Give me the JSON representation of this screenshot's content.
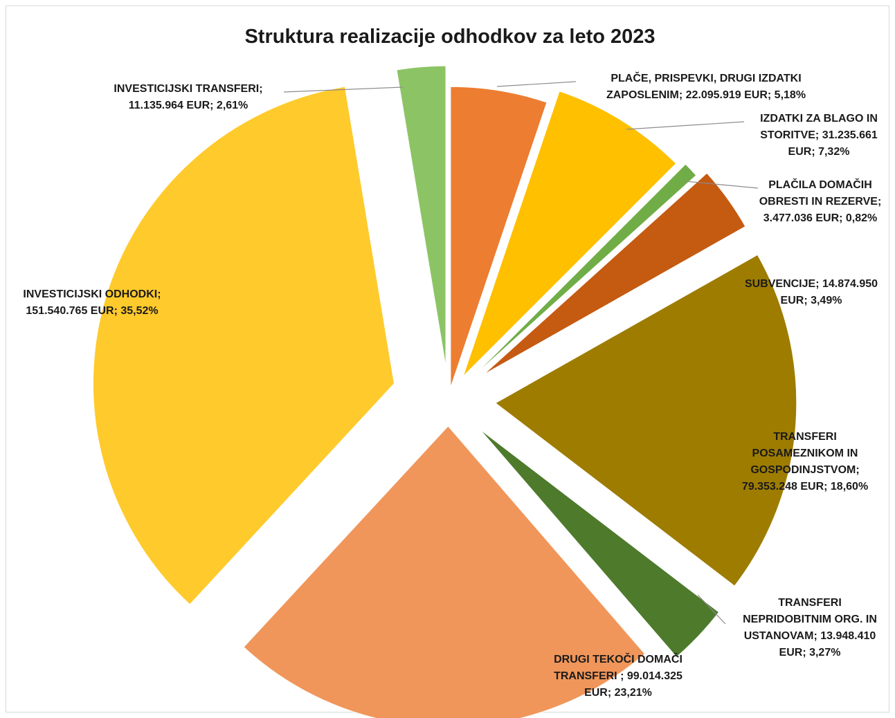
{
  "chart_data": {
    "type": "pie",
    "title": "Struktura realizacije odhodkov za leto 2023",
    "exploded": true,
    "legend": "none",
    "slices": [
      {
        "label": "PLAČE, PRISPEVKI, DRUGI IZDATKI ZAPOSLENIM",
        "value": 22095919,
        "percent": 5.18,
        "color": "#ED7D31",
        "label_lines": [
          "PLAČE, PRISPEVKI, DRUGI IZDATKI",
          "ZAPOSLENIM; 22.095.919 EUR; 5,18%"
        ]
      },
      {
        "label": "IZDATKI ZA BLAGO IN STORITVE",
        "value": 31235661,
        "percent": 7.32,
        "color": "#FFC000",
        "label_lines": [
          "IZDATKI ZA BLAGO IN",
          "STORITVE; 31.235.661",
          "EUR; 7,32%"
        ]
      },
      {
        "label": "PLAČILA DOMAČIH OBRESTI IN REZERVE",
        "value": 3477036,
        "percent": 0.82,
        "color": "#70AD47",
        "label_lines": [
          "PLAČILA DOMAČIH",
          "OBRESTI IN REZERVE;",
          "3.477.036 EUR; 0,82%"
        ]
      },
      {
        "label": "SUBVENCIJE",
        "value": 14874950,
        "percent": 3.49,
        "color": "#C55A11",
        "label_lines": [
          "SUBVENCIJE; 14.874.950",
          "EUR; 3,49%"
        ]
      },
      {
        "label": "TRANSFERI POSAMEZNIKOM IN GOSPODINJSTVOM",
        "value": 79353248,
        "percent": 18.6,
        "color": "#9E7C00",
        "label_lines": [
          "TRANSFERI",
          "POSAMEZNIKOM IN",
          "GOSPODINJSTVOM;",
          "79.353.248 EUR; 18,60%"
        ]
      },
      {
        "label": "TRANSFERI NEPRIDOBITNIM ORG. IN USTANOVAM",
        "value": 13948410,
        "percent": 3.27,
        "color": "#4E7A2C",
        "label_lines": [
          "TRANSFERI",
          "NEPRIDOBITNIM ORG. IN",
          "USTANOVAM; 13.948.410",
          "EUR; 3,27%"
        ]
      },
      {
        "label": "DRUGI TEKOČI DOMAČI TRANSFERI",
        "value": 99014325,
        "percent": 23.21,
        "color": "#F0965A",
        "label_lines": [
          "DRUGI TEKOČI DOMAČI",
          "TRANSFERI ; 99.014.325",
          "EUR; 23,21%"
        ]
      },
      {
        "label": "INVESTICIJSKI ODHODKI",
        "value": 151540765,
        "percent": 35.52,
        "color": "#FFCA2C",
        "label_lines": [
          "INVESTICIJSKI ODHODKI;",
          "151.540.765 EUR; 35,52%"
        ]
      },
      {
        "label": "INVESTICIJSKI TRANSFERI",
        "value": 11135964,
        "percent": 2.61,
        "color": "#8CC465",
        "label_lines": [
          "INVESTICIJSKI TRANSFERI;",
          "11.135.964 EUR; 2,61%"
        ]
      }
    ]
  }
}
